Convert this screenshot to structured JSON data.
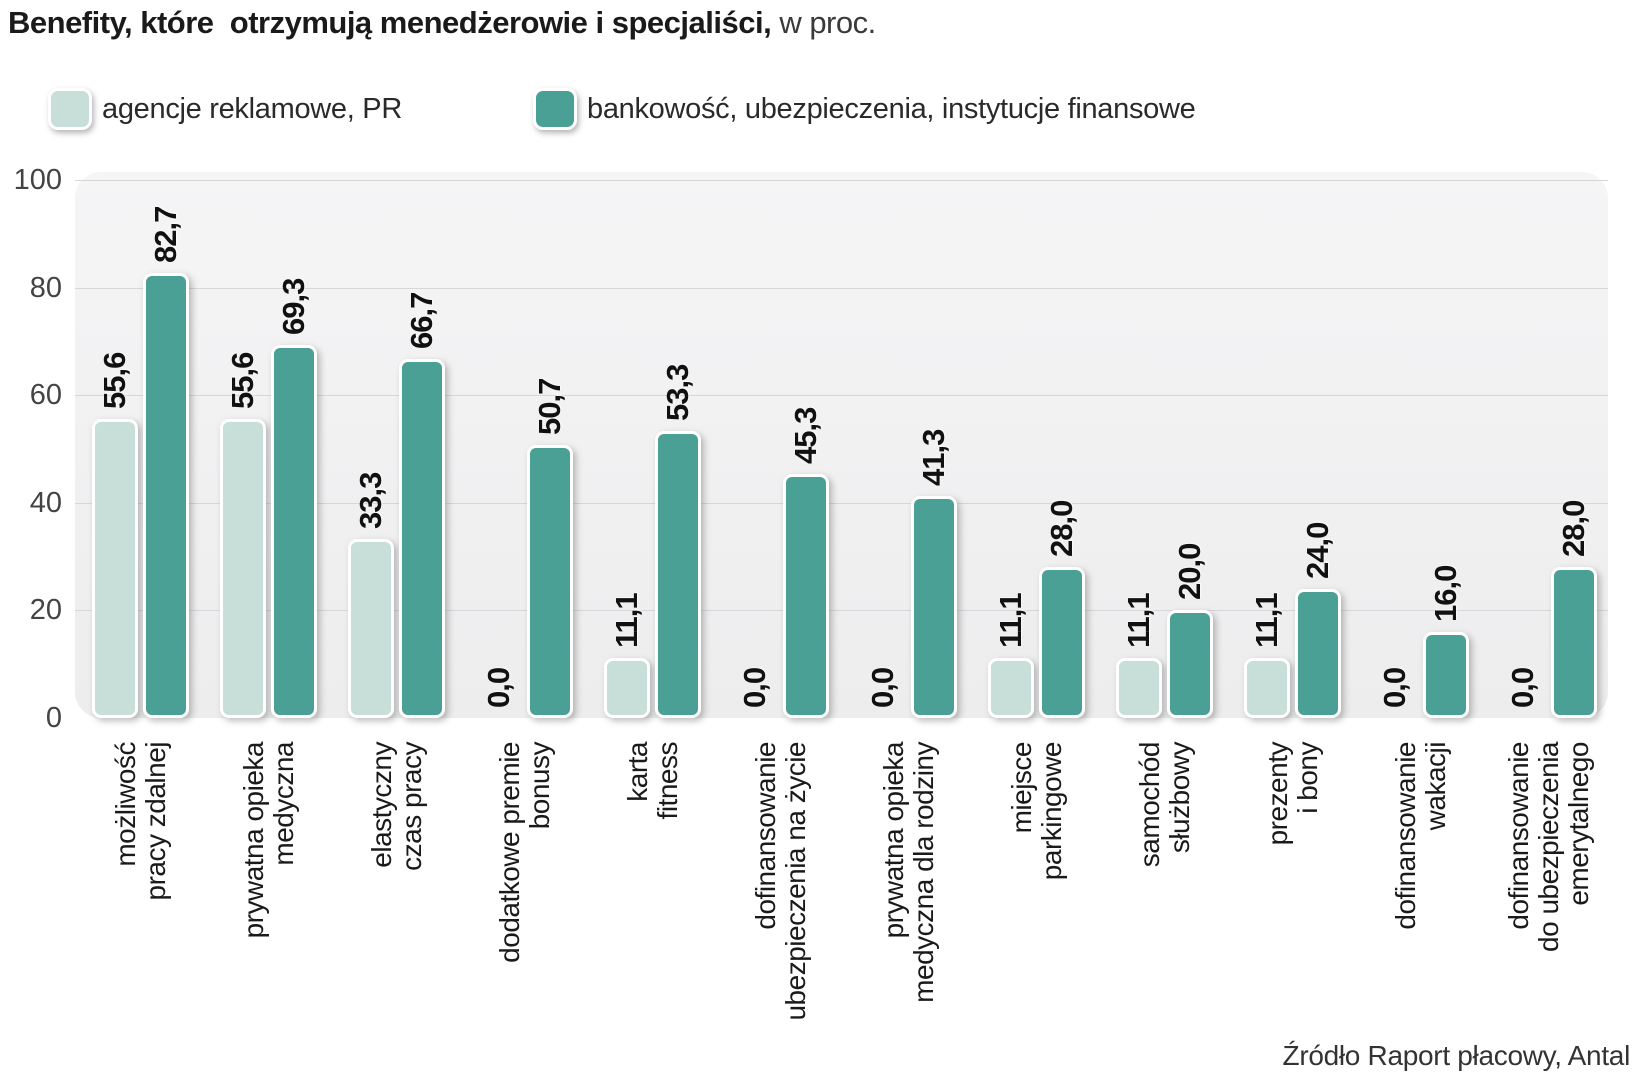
{
  "title": {
    "bold": "Benefity, które  otrzymują menedżerowie i specjaliści,",
    "suffix": " w proc."
  },
  "legend": [
    {
      "label": "agencje reklamowe, PR",
      "color": "#c7dfd8"
    },
    {
      "label": "bankowość, ubezpieczenia, instytucje finansowe",
      "color": "#4aa095"
    }
  ],
  "source": "Źródło Raport płacowy, Antal",
  "chart_data": {
    "type": "bar",
    "title": "Benefity, które otrzymują menedżerowie i specjaliści, w proc.",
    "categories": [
      [
        "możliwość",
        "pracy zdalnej"
      ],
      [
        "prywatna opieka",
        "medyczna"
      ],
      [
        "elastyczny",
        "czas pracy"
      ],
      [
        "dodatkowe premie",
        "bonusy"
      ],
      [
        "karta",
        "fitness"
      ],
      [
        "dofinansowanie",
        "ubezpieczenia na życie"
      ],
      [
        "prywatna opieka",
        "medyczna dla rodziny"
      ],
      [
        "miejsce",
        "parkingowe"
      ],
      [
        "samochód",
        "służbowy"
      ],
      [
        "prezenty",
        "i bony"
      ],
      [
        "dofinansowanie",
        "wakacji"
      ],
      [
        "dofinansowanie",
        "do ubezpieczenia",
        "emerytalnego"
      ]
    ],
    "series": [
      {
        "name": "agencje reklamowe, PR",
        "color": "#c7dfd8",
        "values": [
          55.6,
          55.6,
          33.3,
          0.0,
          11.1,
          0.0,
          0.0,
          11.1,
          11.1,
          11.1,
          0.0,
          0.0
        ]
      },
      {
        "name": "bankowość, ubezpieczenia, instytucje finansowe",
        "color": "#4aa095",
        "values": [
          82.7,
          69.3,
          66.7,
          50.7,
          53.3,
          45.3,
          41.3,
          28.0,
          20.0,
          24.0,
          16.0,
          28.0
        ]
      }
    ],
    "value_label_format": "comma-decimal-one-place",
    "ylabel": "",
    "xlabel": "",
    "ylim": [
      0,
      100
    ],
    "yticks": [
      0,
      20,
      40,
      60,
      80,
      100
    ],
    "grid": true,
    "legend_position": "top"
  }
}
